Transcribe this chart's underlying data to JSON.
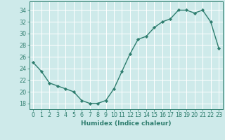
{
  "x": [
    0,
    1,
    2,
    3,
    4,
    5,
    6,
    7,
    8,
    9,
    10,
    11,
    12,
    13,
    14,
    15,
    16,
    17,
    18,
    19,
    20,
    21,
    22,
    23
  ],
  "y": [
    25,
    23.5,
    21.5,
    21,
    20.5,
    20,
    18.5,
    18,
    18,
    18.5,
    20.5,
    23.5,
    26.5,
    29,
    29.5,
    31,
    32,
    32.5,
    34,
    34,
    33.5,
    34,
    32,
    27.5
  ],
  "line_color": "#2e7d6e",
  "marker": "D",
  "marker_size": 2.2,
  "line_width": 1.0,
  "xlabel": "Humidex (Indice chaleur)",
  "xlim": [
    -0.5,
    23.5
  ],
  "ylim": [
    17,
    35.5
  ],
  "yticks": [
    18,
    20,
    22,
    24,
    26,
    28,
    30,
    32,
    34
  ],
  "xticks": [
    0,
    1,
    2,
    3,
    4,
    5,
    6,
    7,
    8,
    9,
    10,
    11,
    12,
    13,
    14,
    15,
    16,
    17,
    18,
    19,
    20,
    21,
    22,
    23
  ],
  "background_color": "#ceeaea",
  "grid_color": "#ffffff",
  "axis_color": "#2e7d6e",
  "tick_color": "#2e7d6e",
  "label_color": "#2e7d6e",
  "xlabel_fontsize": 6.5,
  "tick_fontsize": 5.8
}
